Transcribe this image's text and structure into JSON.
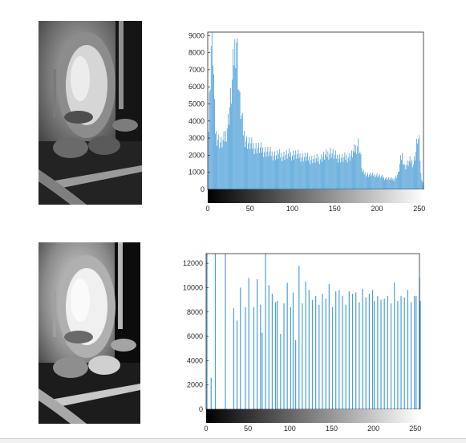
{
  "colors": {
    "bar": "#4a9fd8",
    "axis": "#262626",
    "frame": "#262626",
    "background": "#ffffff"
  },
  "images": [
    {
      "subject": "grayscale photo of ornate mirror with candles and dishes"
    },
    {
      "subject": "histogram-equalized grayscale photo of ornate mirror with candles and dishes"
    }
  ],
  "chart_data": [
    {
      "type": "bar",
      "title": "",
      "xlabel": "",
      "ylabel": "",
      "xlim": [
        0,
        255
      ],
      "ylim": [
        0,
        9200
      ],
      "xticks": [
        0,
        50,
        100,
        150,
        200,
        250
      ],
      "yticks": [
        0,
        1000,
        2000,
        3000,
        4000,
        5000,
        6000,
        7000,
        8000,
        9000
      ],
      "colorbar": "grayscale 0-255",
      "profile": [
        [
          0,
          1100
        ],
        [
          1,
          3500
        ],
        [
          2,
          5200
        ],
        [
          3,
          6800
        ],
        [
          4,
          8400
        ],
        [
          5,
          9200
        ],
        [
          6,
          8100
        ],
        [
          7,
          6500
        ],
        [
          8,
          4500
        ],
        [
          9,
          3500
        ],
        [
          10,
          3200
        ],
        [
          12,
          3000
        ],
        [
          14,
          2800
        ],
        [
          16,
          2700
        ],
        [
          18,
          2800
        ],
        [
          20,
          3000
        ],
        [
          22,
          3400
        ],
        [
          24,
          4000
        ],
        [
          26,
          4800
        ],
        [
          28,
          5600
        ],
        [
          29,
          6200
        ],
        [
          30,
          7000
        ],
        [
          31,
          7800
        ],
        [
          32,
          8200
        ],
        [
          33,
          8600
        ],
        [
          34,
          8900
        ],
        [
          35,
          8000
        ],
        [
          36,
          6800
        ],
        [
          37,
          5800
        ],
        [
          38,
          5000
        ],
        [
          40,
          4200
        ],
        [
          42,
          3400
        ],
        [
          44,
          3000
        ],
        [
          46,
          2800
        ],
        [
          48,
          2700
        ],
        [
          55,
          2500
        ],
        [
          60,
          2400
        ],
        [
          70,
          2200
        ],
        [
          80,
          2000
        ],
        [
          90,
          2000
        ],
        [
          100,
          2050
        ],
        [
          110,
          1950
        ],
        [
          120,
          1800
        ],
        [
          130,
          1750
        ],
        [
          140,
          2000
        ],
        [
          145,
          2200
        ],
        [
          150,
          1950
        ],
        [
          160,
          1800
        ],
        [
          170,
          2000
        ],
        [
          175,
          2400
        ],
        [
          178,
          2700
        ],
        [
          180,
          2200
        ],
        [
          183,
          1000
        ],
        [
          190,
          850
        ],
        [
          200,
          850
        ],
        [
          210,
          650
        ],
        [
          220,
          600
        ],
        [
          225,
          900
        ],
        [
          228,
          1700
        ],
        [
          230,
          2000
        ],
        [
          233,
          1300
        ],
        [
          236,
          1500
        ],
        [
          240,
          1700
        ],
        [
          243,
          1500
        ],
        [
          246,
          2200
        ],
        [
          248,
          3000
        ],
        [
          250,
          2700
        ],
        [
          252,
          900
        ],
        [
          255,
          200
        ]
      ]
    },
    {
      "type": "bar",
      "title": "",
      "xlabel": "",
      "ylabel": "",
      "xlim": [
        0,
        255
      ],
      "ylim": [
        0,
        12800
      ],
      "xticks": [
        0,
        50,
        100,
        150,
        200,
        250
      ],
      "yticks": [
        0,
        2000,
        4000,
        6000,
        8000,
        10000,
        12000
      ],
      "colorbar": "grayscale 0-255",
      "bars": [
        [
          1,
          12800
        ],
        [
          6,
          2600
        ],
        [
          11,
          12800
        ],
        [
          23,
          12800
        ],
        [
          33,
          8300
        ],
        [
          37,
          7300
        ],
        [
          41,
          10000
        ],
        [
          47,
          8400
        ],
        [
          51,
          10800
        ],
        [
          57,
          8400
        ],
        [
          61,
          10700
        ],
        [
          65,
          8600
        ],
        [
          67,
          6300
        ],
        [
          71,
          12800
        ],
        [
          75,
          10200
        ],
        [
          79,
          9500
        ],
        [
          83,
          8800
        ],
        [
          85,
          8900
        ],
        [
          89,
          6200
        ],
        [
          93,
          8700
        ],
        [
          97,
          10400
        ],
        [
          101,
          8400
        ],
        [
          104,
          9600
        ],
        [
          107,
          5700
        ],
        [
          111,
          11800
        ],
        [
          115,
          8700
        ],
        [
          119,
          10500
        ],
        [
          123,
          9800
        ],
        [
          127,
          9000
        ],
        [
          131,
          9300
        ],
        [
          135,
          8600
        ],
        [
          139,
          9500
        ],
        [
          143,
          9100
        ],
        [
          147,
          10300
        ],
        [
          151,
          8400
        ],
        [
          155,
          9700
        ],
        [
          159,
          9800
        ],
        [
          163,
          9300
        ],
        [
          167,
          8600
        ],
        [
          171,
          9700
        ],
        [
          175,
          9500
        ],
        [
          179,
          9600
        ],
        [
          183,
          8800
        ],
        [
          187,
          9900
        ],
        [
          191,
          9200
        ],
        [
          195,
          9500
        ],
        [
          199,
          9800
        ],
        [
          201,
          8900
        ],
        [
          205,
          9300
        ],
        [
          209,
          9000
        ],
        [
          213,
          9100
        ],
        [
          217,
          9300
        ],
        [
          221,
          8700
        ],
        [
          225,
          10400
        ],
        [
          229,
          8900
        ],
        [
          233,
          9300
        ],
        [
          237,
          9200
        ],
        [
          241,
          9800
        ],
        [
          245,
          8800
        ],
        [
          249,
          9300
        ],
        [
          251,
          9300
        ],
        [
          255,
          10800
        ],
        [
          256,
          8900
        ]
      ]
    }
  ]
}
